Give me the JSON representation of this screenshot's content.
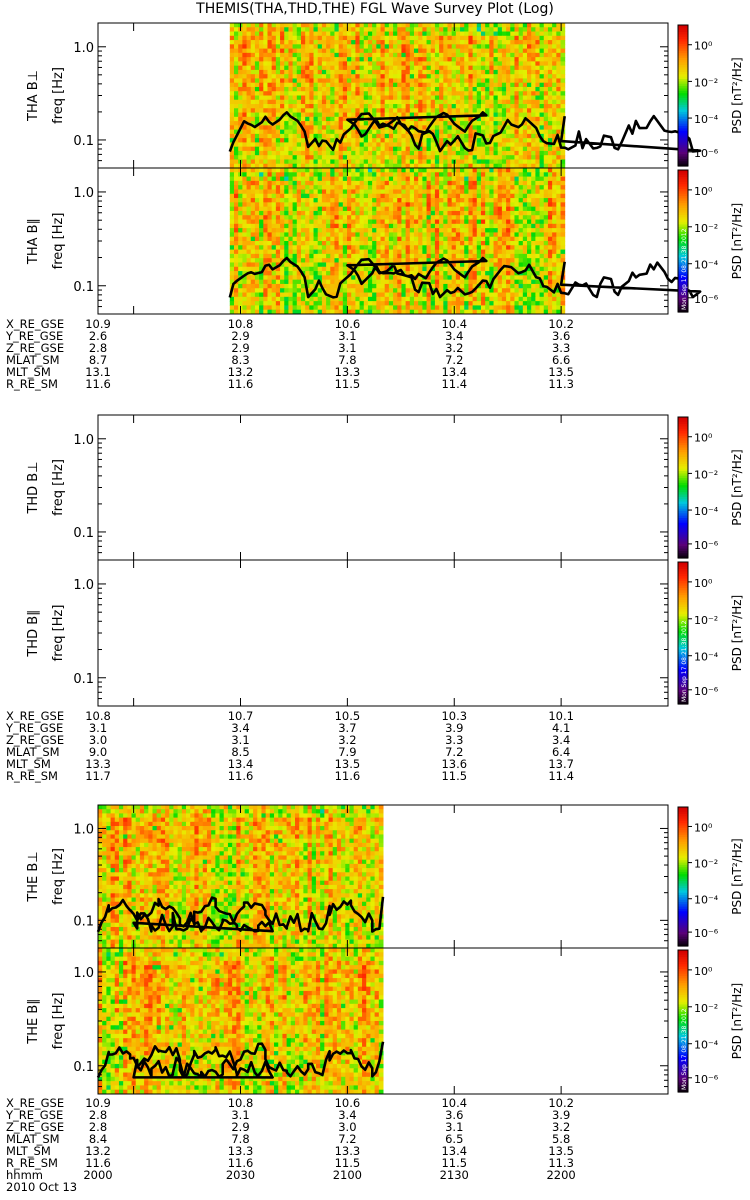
{
  "title": "THEMIS(THA,THD,THE) FGL Wave Survey Plot (Log)",
  "colorbar": {
    "label": "PSD [nT²/Hz]",
    "ticks": [
      "10⁰",
      "10⁻²",
      "10⁻⁴",
      "10⁻⁶"
    ],
    "stamp": "Mon Sep 17 08:21:38 2012"
  },
  "footer": {
    "time_row_label": "hhmm",
    "date": "2010 Oct 13",
    "time_ticks": [
      "2000",
      "2030",
      "2100",
      "2130",
      "2200"
    ]
  },
  "chart_data": [
    {
      "type": "heatmap",
      "name": "THA",
      "panels": [
        {
          "ylabel": "THA B⊥",
          "yunit": "freq [Hz]",
          "data_x_range": [
            2027,
            2201
          ]
        },
        {
          "ylabel": "THA B∥",
          "yunit": "freq [Hz]",
          "data_x_range": [
            2027,
            2201
          ]
        }
      ],
      "xlim": [
        1950,
        2230
      ],
      "ylim": [
        0.05,
        1.8
      ],
      "yscale": "log",
      "ytick_labels": [
        "1.0",
        "0.1"
      ],
      "zrange": [
        1e-07,
        10.0
      ],
      "line_series_peak_times": [
        2043,
        2065,
        2087,
        2098
      ]
    },
    {
      "type": "heatmap",
      "name": "THD",
      "panels": [
        {
          "ylabel": "THD B⊥",
          "yunit": "freq [Hz]",
          "data_x_range": null
        },
        {
          "ylabel": "THD B∥",
          "yunit": "freq [Hz]",
          "data_x_range": null
        }
      ],
      "xlim": [
        1950,
        2230
      ],
      "ylim": [
        0.05,
        1.8
      ],
      "yscale": "log",
      "ytick_labels": [
        "1.0",
        "0.1"
      ],
      "zrange": [
        1e-07,
        10.0
      ]
    },
    {
      "type": "heatmap",
      "name": "THE",
      "panels": [
        {
          "ylabel": "THE B⊥",
          "yunit": "freq [Hz]",
          "data_x_range": [
            1950,
            2070
          ]
        },
        {
          "ylabel": "THE B∥",
          "yunit": "freq [Hz]",
          "data_x_range": [
            1950,
            2070
          ]
        }
      ],
      "xlim": [
        1950,
        2230
      ],
      "ylim": [
        0.05,
        1.8
      ],
      "yscale": "log",
      "ytick_labels": [
        "1.0",
        "0.1"
      ],
      "zrange": [
        1e-07,
        10.0
      ]
    }
  ],
  "ephemeris": [
    {
      "rows": [
        {
          "label": "X_RE_GSE",
          "values": [
            "10.9",
            "10.8",
            "10.6",
            "10.4",
            "10.2"
          ]
        },
        {
          "label": "Y_RE_GSE",
          "values": [
            "2.6",
            "2.9",
            "3.1",
            "3.4",
            "3.6"
          ]
        },
        {
          "label": "Z_RE_GSE",
          "values": [
            "2.8",
            "2.9",
            "3.1",
            "3.2",
            "3.3"
          ]
        },
        {
          "label": "MLAT_SM",
          "values": [
            "8.7",
            "8.3",
            "7.8",
            "7.2",
            "6.6"
          ]
        },
        {
          "label": "MLT_SM",
          "values": [
            "13.1",
            "13.2",
            "13.3",
            "13.4",
            "13.5"
          ]
        },
        {
          "label": "R_RE_SM",
          "values": [
            "11.6",
            "11.6",
            "11.5",
            "11.4",
            "11.3"
          ]
        }
      ]
    },
    {
      "rows": [
        {
          "label": "X_RE_GSE",
          "values": [
            "10.8",
            "10.7",
            "10.5",
            "10.3",
            "10.1"
          ]
        },
        {
          "label": "Y_RE_GSE",
          "values": [
            "3.1",
            "3.4",
            "3.7",
            "3.9",
            "4.1"
          ]
        },
        {
          "label": "Z_RE_GSE",
          "values": [
            "3.0",
            "3.1",
            "3.2",
            "3.3",
            "3.4"
          ]
        },
        {
          "label": "MLAT_SM",
          "values": [
            "9.0",
            "8.5",
            "7.9",
            "7.2",
            "6.4"
          ]
        },
        {
          "label": "MLT_SM",
          "values": [
            "13.3",
            "13.4",
            "13.5",
            "13.6",
            "13.7"
          ]
        },
        {
          "label": "R_RE_SM",
          "values": [
            "11.7",
            "11.6",
            "11.6",
            "11.5",
            "11.4"
          ]
        }
      ]
    },
    {
      "rows": [
        {
          "label": "X_RE_GSE",
          "values": [
            "10.9",
            "10.8",
            "10.6",
            "10.4",
            "10.2"
          ]
        },
        {
          "label": "Y_RE_GSE",
          "values": [
            "2.8",
            "3.1",
            "3.4",
            "3.6",
            "3.9"
          ]
        },
        {
          "label": "Z_RE_GSE",
          "values": [
            "2.8",
            "2.9",
            "3.0",
            "3.1",
            "3.2"
          ]
        },
        {
          "label": "MLAT_SM",
          "values": [
            "8.4",
            "7.8",
            "7.2",
            "6.5",
            "5.8"
          ]
        },
        {
          "label": "MLT_SM",
          "values": [
            "13.2",
            "13.3",
            "13.3",
            "13.4",
            "13.5"
          ]
        },
        {
          "label": "R_RE_SM",
          "values": [
            "11.6",
            "11.6",
            "11.5",
            "11.5",
            "11.3"
          ]
        }
      ]
    }
  ]
}
